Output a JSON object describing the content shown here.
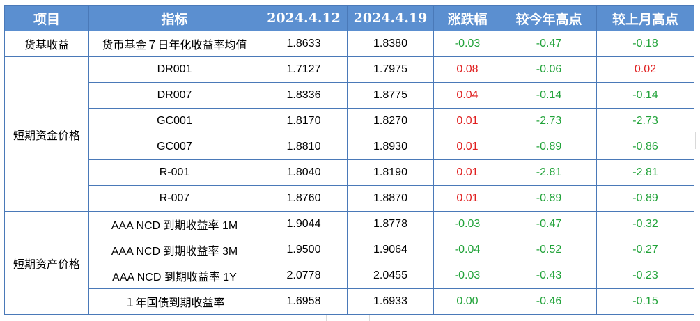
{
  "header": {
    "item": "项目",
    "indicator": "指标",
    "date1": "2024.4.12",
    "date2": "2024.4.19",
    "change": "涨跌幅",
    "vs_year_high": "较今年高点",
    "vs_month_high": "较上月高点"
  },
  "groups": [
    {
      "name": "货基收益",
      "rows": [
        {
          "indicator": "货币基金７日年化收益率均值",
          "v1": "1.8633",
          "v2": "1.8380",
          "change": "-0.03",
          "yearHigh": "-0.47",
          "monthHigh": "-0.18",
          "change_sign": "neg",
          "yearHigh_sign": "neg",
          "monthHigh_sign": "neg"
        }
      ]
    },
    {
      "name": "短期资金价格",
      "rows": [
        {
          "indicator": "DR001",
          "v1": "1.7127",
          "v2": "1.7975",
          "change": "0.08",
          "yearHigh": "-0.06",
          "monthHigh": "0.02",
          "change_sign": "pos",
          "yearHigh_sign": "neg",
          "monthHigh_sign": "pos"
        },
        {
          "indicator": "DR007",
          "v1": "1.8336",
          "v2": "1.8775",
          "change": "0.04",
          "yearHigh": "-0.14",
          "monthHigh": "-0.14",
          "change_sign": "pos",
          "yearHigh_sign": "neg",
          "monthHigh_sign": "neg"
        },
        {
          "indicator": "GC001",
          "v1": "1.8170",
          "v2": "1.8270",
          "change": "0.01",
          "yearHigh": "-2.73",
          "monthHigh": "-2.73",
          "change_sign": "pos",
          "yearHigh_sign": "neg",
          "monthHigh_sign": "neg"
        },
        {
          "indicator": "GC007",
          "v1": "1.8810",
          "v2": "1.8930",
          "change": "0.01",
          "yearHigh": "-0.89",
          "monthHigh": "-0.86",
          "change_sign": "pos",
          "yearHigh_sign": "neg",
          "monthHigh_sign": "neg"
        },
        {
          "indicator": "R-001",
          "v1": "1.8040",
          "v2": "1.8190",
          "change": "0.01",
          "yearHigh": "-2.81",
          "monthHigh": "-2.81",
          "change_sign": "pos",
          "yearHigh_sign": "neg",
          "monthHigh_sign": "neg"
        },
        {
          "indicator": "R-007",
          "v1": "1.8760",
          "v2": "1.8870",
          "change": "0.01",
          "yearHigh": "-0.89",
          "monthHigh": "-0.89",
          "change_sign": "pos",
          "yearHigh_sign": "neg",
          "monthHigh_sign": "neg"
        }
      ]
    },
    {
      "name": "短期资产价格",
      "rows": [
        {
          "indicator": "AAA NCD 到期收益率 1M",
          "v1": "1.9044",
          "v2": "1.8778",
          "change": "-0.03",
          "yearHigh": "-0.47",
          "monthHigh": "-0.32",
          "change_sign": "neg",
          "yearHigh_sign": "neg",
          "monthHigh_sign": "neg"
        },
        {
          "indicator": "AAA NCD 到期收益率 3M",
          "v1": "1.9500",
          "v2": "1.9064",
          "change": "-0.04",
          "yearHigh": "-0.52",
          "monthHigh": "-0.27",
          "change_sign": "neg",
          "yearHigh_sign": "neg",
          "monthHigh_sign": "neg"
        },
        {
          "indicator": "AAA NCD 到期收益率 1Y",
          "v1": "2.0778",
          "v2": "2.0455",
          "change": "-0.03",
          "yearHigh": "-0.43",
          "monthHigh": "-0.23",
          "change_sign": "neg",
          "yearHigh_sign": "neg",
          "monthHigh_sign": "neg"
        },
        {
          "indicator": "１年国债到期收益率",
          "v1": "1.6958",
          "v2": "1.6933",
          "change": "0.00",
          "yearHigh": "-0.46",
          "monthHigh": "-0.15",
          "change_sign": "neu",
          "yearHigh_sign": "neg",
          "monthHigh_sign": "neg"
        }
      ]
    }
  ],
  "colors": {
    "header_bg": "#5b8fd0",
    "border": "#4a79b8",
    "negative": "#22a33a",
    "positive": "#e02020"
  }
}
